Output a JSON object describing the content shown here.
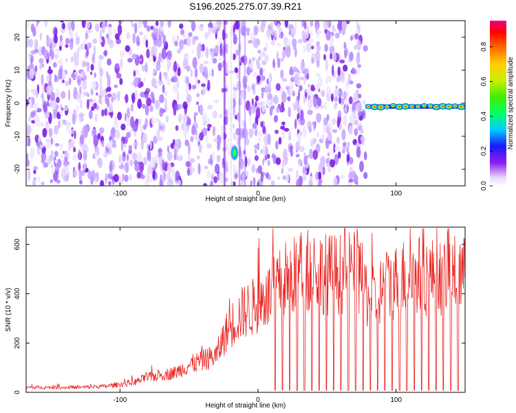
{
  "chart_data": [
    {
      "type": "heatmap",
      "title": "S196.2025.275.07.39.R21",
      "xlabel": "Height of straight line (km)",
      "ylabel": "Frequency (Hz)",
      "xlim": [
        -168,
        150
      ],
      "ylim": [
        -25,
        25
      ],
      "xticks": [
        -100,
        0,
        100
      ],
      "xtick_labels": [
        "-100",
        "0",
        "100"
      ],
      "yticks": [
        -20,
        -10,
        0,
        10,
        20
      ],
      "ytick_labels": [
        "-20",
        "-10",
        "0",
        "10",
        "20"
      ],
      "colorbar": {
        "label": "Normalized spectral amplitude",
        "ticks": [
          0.0,
          0.2,
          0.4,
          0.6,
          0.8
        ],
        "tick_labels": [
          "0.0",
          "0.2",
          "0.4",
          "0.6",
          "0.8"
        ],
        "range": [
          0,
          0.95
        ]
      },
      "features": [
        {
          "name": "noise-region",
          "x_range": [
            -168,
            78
          ],
          "freq_range": [
            -25,
            25
          ],
          "amplitude": 0.1
        },
        {
          "name": "bright-spot",
          "x": -17,
          "freq": -15,
          "amplitude": 0.55
        },
        {
          "name": "signal-line",
          "x_range": [
            78,
            150
          ],
          "freq": -1,
          "amplitude_range": [
            0.3,
            0.9
          ]
        }
      ]
    },
    {
      "type": "line",
      "xlabel": "Height of straight line (km)",
      "ylabel": "SNR (10 * v/v)",
      "xlim": [
        -168,
        150
      ],
      "ylim": [
        0,
        670
      ],
      "xticks": [
        -100,
        0,
        100
      ],
      "xtick_labels": [
        "-100",
        "0",
        "100"
      ],
      "yticks": [
        0,
        200,
        400,
        600
      ],
      "ytick_labels": [
        "0",
        "200",
        "400",
        "600"
      ],
      "series": [
        {
          "name": "SNR",
          "color": "#e8201e",
          "x": [
            -168,
            -150,
            -130,
            -110,
            -90,
            -80,
            -70,
            -60,
            -50,
            -40,
            -30,
            -25,
            -20,
            -15,
            -10,
            -5,
            0,
            5,
            10,
            15,
            20,
            25,
            30,
            40,
            50,
            60,
            70,
            75,
            80,
            85,
            90,
            100,
            110,
            120,
            130,
            140,
            150
          ],
          "values": [
            20,
            20,
            20,
            25,
            40,
            60,
            70,
            80,
            110,
            130,
            150,
            220,
            270,
            300,
            330,
            340,
            360,
            380,
            400,
            430,
            460,
            470,
            480,
            500,
            480,
            480,
            490,
            460,
            380,
            380,
            420,
            450,
            480,
            470,
            470,
            480,
            470
          ]
        }
      ]
    }
  ]
}
